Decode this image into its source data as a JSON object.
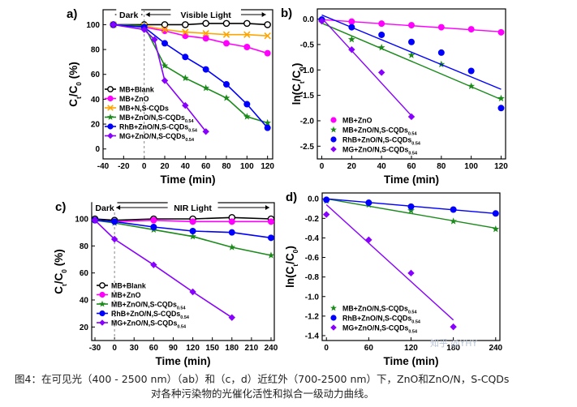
{
  "caption": {
    "line1": "图4：在可见光（400 - 2500 nm）（ab）和（c，d）近红外（700-2500 nm）下，ZnO和ZnO/N，S-CQDs",
    "line2": "对各种污染物的光催化活性和拟合一级动力曲线。"
  },
  "watermark": "知乎 @YHY",
  "colors": {
    "blank": "#000000",
    "zno": "#ff00ff",
    "nscqds": "#ffa500",
    "mb_comp": "#1a8a1a",
    "rhb_comp": "#0000ff",
    "mg_comp": "#8800ff"
  },
  "chart_data": [
    {
      "panel": "a)",
      "type": "line",
      "xlabel": "Time (min)",
      "ylabel": "Ct/C0 (%)",
      "xlim": [
        -40,
        125
      ],
      "ylim": [
        -8,
        112
      ],
      "xticks": [
        -40,
        -20,
        0,
        20,
        40,
        60,
        80,
        100,
        120
      ],
      "yticks": [
        0,
        20,
        40,
        60,
        80,
        100
      ],
      "regions": [
        {
          "label": "Dark",
          "from": -30,
          "to": 0
        },
        {
          "label": "Visible Light",
          "from": 0,
          "to": 120
        }
      ],
      "legend_position": "bottom-left",
      "series": [
        {
          "name": "MB+Blank",
          "marker": "circle-open",
          "color": "#000000",
          "x": [
            -30,
            0,
            20,
            40,
            60,
            80,
            100,
            120
          ],
          "y": [
            100,
            100,
            100,
            100,
            101,
            101,
            101,
            100
          ]
        },
        {
          "name": "MB+ZnO",
          "marker": "circle",
          "color": "#ff00ff",
          "x": [
            -30,
            0,
            20,
            40,
            60,
            80,
            100,
            120
          ],
          "y": [
            100,
            98,
            95,
            91,
            89,
            85,
            82,
            77
          ]
        },
        {
          "name": "MB+N,S-CQDs",
          "marker": "x",
          "color": "#ffa500",
          "x": [
            -30,
            0,
            20,
            40,
            60,
            80,
            100,
            120
          ],
          "y": [
            100,
            99,
            96,
            94,
            93,
            92,
            92,
            91
          ]
        },
        {
          "name": "MB+ZnO/N,S-CQDs0.54",
          "marker": "star",
          "color": "#1a8a1a",
          "x": [
            -30,
            0,
            20,
            40,
            60,
            80,
            100,
            120
          ],
          "y": [
            100,
            99,
            67,
            57,
            49,
            41,
            26,
            21
          ]
        },
        {
          "name": "RhB+ZnO/N,S-CQDs0.54",
          "marker": "circle",
          "color": "#0000ff",
          "x": [
            -30,
            0,
            20,
            40,
            60,
            80,
            100,
            120
          ],
          "y": [
            100,
            98,
            85,
            74,
            64,
            52,
            36,
            17
          ]
        },
        {
          "name": "MG+ZnO/N,S-CQDs0.54",
          "marker": "diamond",
          "color": "#8800ff",
          "x": [
            -30,
            0,
            10,
            20,
            40,
            60
          ],
          "y": [
            100,
            96,
            88,
            55,
            35,
            14
          ]
        }
      ]
    },
    {
      "panel": "b)",
      "type": "scatter",
      "xlabel": "Time (min)",
      "ylabel": "ln(Ct/C0)",
      "xlim": [
        -3,
        123
      ],
      "ylim": [
        -2.75,
        0.2
      ],
      "xticks": [
        0,
        20,
        40,
        60,
        80,
        100,
        120
      ],
      "yticks": [
        0.0,
        -0.5,
        -1.0,
        -1.5,
        -2.0,
        -2.5
      ],
      "legend_position": "bottom-left",
      "series": [
        {
          "name": "MB+ZnO",
          "marker": "circle",
          "color": "#ff00ff",
          "x": [
            0,
            20,
            40,
            60,
            80,
            100,
            120
          ],
          "y": [
            -0.02,
            -0.05,
            -0.09,
            -0.12,
            -0.16,
            -0.2,
            -0.26
          ],
          "fit": [
            [
              0,
              -0.01
            ],
            [
              120,
              -0.25
            ]
          ]
        },
        {
          "name": "MB+ZnO/N,S-CQDs0.54",
          "marker": "star",
          "color": "#1a8a1a",
          "x": [
            0,
            20,
            40,
            60,
            80,
            100,
            120
          ],
          "y": [
            -0.01,
            -0.4,
            -0.56,
            -0.71,
            -0.89,
            -1.32,
            -1.56
          ],
          "fit": [
            [
              0,
              -0.08
            ],
            [
              120,
              -1.58
            ]
          ]
        },
        {
          "name": "RhB+ZnO/N,S-CQDs0.54",
          "marker": "circle",
          "color": "#0000ff",
          "x": [
            0,
            20,
            40,
            60,
            80,
            100,
            120
          ],
          "y": [
            -0.01,
            -0.16,
            -0.31,
            -0.45,
            -0.66,
            -1.02,
            -1.75
          ],
          "fit": [
            [
              0,
              0.08
            ],
            [
              120,
              -1.38
            ]
          ]
        },
        {
          "name": "MG+ZnO/N,S-CQDs0.54",
          "marker": "diamond",
          "color": "#8800ff",
          "x": [
            0,
            20,
            40,
            60
          ],
          "y": [
            -0.04,
            -0.6,
            -1.05,
            -1.92
          ],
          "fit": [
            [
              0,
              0.02
            ],
            [
              60,
              -1.9
            ]
          ]
        }
      ]
    },
    {
      "panel": "c)",
      "type": "line",
      "xlabel": "Time (min)",
      "ylabel": "Ct/C0 (%)",
      "xlim": [
        -35,
        245
      ],
      "ylim": [
        10,
        112
      ],
      "xticks": [
        -30,
        0,
        30,
        60,
        90,
        120,
        150,
        180,
        210,
        240
      ],
      "yticks": [
        20,
        40,
        60,
        80,
        100
      ],
      "regions": [
        {
          "label": "Dark",
          "from": -30,
          "to": 0
        },
        {
          "label": "NIR Light",
          "from": 0,
          "to": 240
        }
      ],
      "legend_position": "bottom-left",
      "series": [
        {
          "name": "MB+Blank",
          "marker": "circle-open",
          "color": "#000000",
          "x": [
            -30,
            0,
            60,
            120,
            180,
            240
          ],
          "y": [
            100,
            99,
            100,
            100,
            101,
            100
          ]
        },
        {
          "name": "MB+ZnO",
          "marker": "circle",
          "color": "#ff00ff",
          "x": [
            -30,
            0,
            60,
            120,
            180,
            240
          ],
          "y": [
            99,
            98,
            99,
            98,
            98,
            98
          ]
        },
        {
          "name": "MB+ZnO/N,S-CQDs0.54",
          "marker": "star",
          "color": "#1a8a1a",
          "x": [
            -30,
            0,
            60,
            120,
            180,
            240
          ],
          "y": [
            99,
            97,
            92,
            87,
            79,
            73
          ]
        },
        {
          "name": "RhB+ZnO/N,S-CQDs0.54",
          "marker": "circle",
          "color": "#0000ff",
          "x": [
            -30,
            0,
            60,
            120,
            180,
            240
          ],
          "y": [
            99,
            98,
            94,
            91,
            90,
            86
          ]
        },
        {
          "name": "MG+ZnO/N,S-CQDs0.54",
          "marker": "diamond",
          "color": "#8800ff",
          "x": [
            -30,
            0,
            60,
            120,
            180
          ],
          "y": [
            99,
            85,
            66,
            46,
            27
          ]
        }
      ]
    },
    {
      "panel": "d)",
      "type": "scatter",
      "xlabel": "Time (min)",
      "ylabel": "ln(Ct/C0)",
      "xlim": [
        -6,
        246
      ],
      "ylim": [
        -1.45,
        0.06
      ],
      "xticks": [
        0,
        60,
        120,
        180,
        240
      ],
      "yticks": [
        0.0,
        -0.2,
        -0.4,
        -0.6,
        -0.8,
        -1.0,
        -1.2,
        -1.4
      ],
      "legend_position": "bottom-left",
      "series": [
        {
          "name": "MB+ZnO/N,S-CQDs0.54",
          "marker": "star",
          "color": "#1a8a1a",
          "x": [
            0,
            60,
            120,
            180,
            240
          ],
          "y": [
            -0.02,
            -0.06,
            -0.12,
            -0.23,
            -0.31
          ],
          "fit": [
            [
              0,
              0.0
            ],
            [
              240,
              -0.3
            ]
          ]
        },
        {
          "name": "RhB+ZnO/N,S-CQDs0.54",
          "marker": "circle",
          "color": "#0000ff",
          "x": [
            0,
            60,
            120,
            180,
            240
          ],
          "y": [
            -0.01,
            -0.04,
            -0.08,
            -0.11,
            -0.15
          ],
          "fit": [
            [
              0,
              0.0
            ],
            [
              240,
              -0.15
            ]
          ]
        },
        {
          "name": "MG+ZnO/N,S-CQDs0.54",
          "marker": "diamond",
          "color": "#8800ff",
          "x": [
            0,
            60,
            120,
            180
          ],
          "y": [
            -0.16,
            -0.42,
            -0.76,
            -1.31
          ],
          "fit": [
            [
              0,
              -0.06
            ],
            [
              180,
              -1.24
            ]
          ]
        }
      ]
    }
  ]
}
